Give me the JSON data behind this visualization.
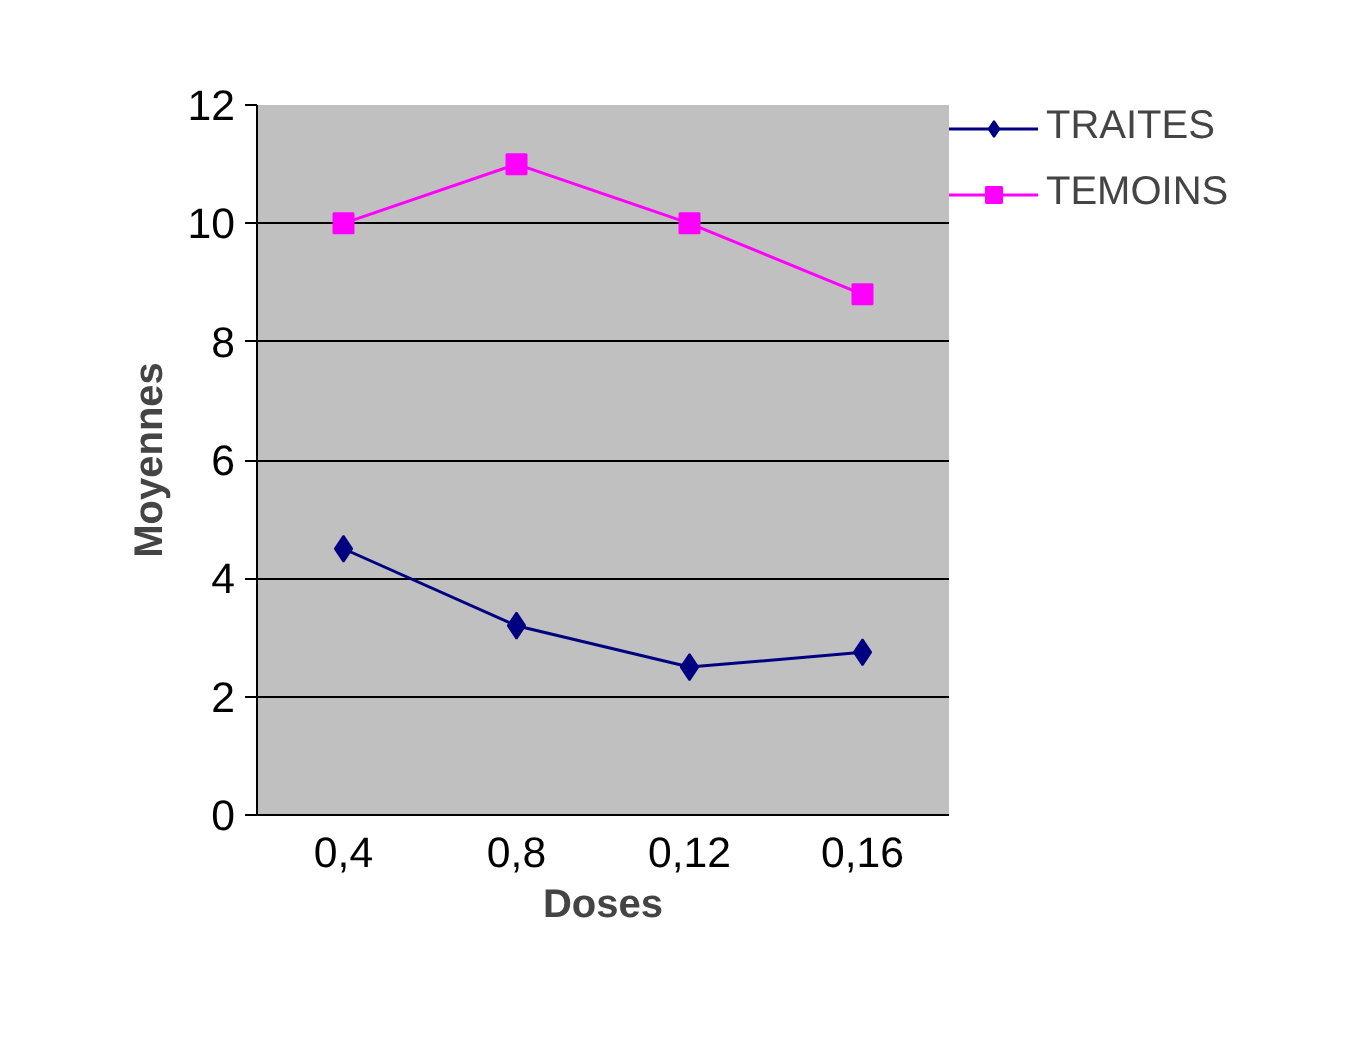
{
  "chart_data": {
    "type": "line",
    "xlabel": "Doses",
    "ylabel": "Moyennes",
    "categories": [
      "0,4",
      "0,8",
      "0,12",
      "0,16"
    ],
    "series": [
      {
        "name": "TRAITES",
        "color": "#000080",
        "marker": "diamond",
        "values": [
          4.5,
          3.2,
          2.5,
          2.75
        ]
      },
      {
        "name": "TEMOINS",
        "color": "#ff00ff",
        "marker": "square",
        "values": [
          10,
          11,
          10,
          8.8
        ]
      }
    ],
    "ylim": [
      0,
      12
    ],
    "yticks": [
      0,
      2,
      4,
      6,
      8,
      10,
      12
    ],
    "grid": "y",
    "legend": "right",
    "line_style": "solid"
  }
}
